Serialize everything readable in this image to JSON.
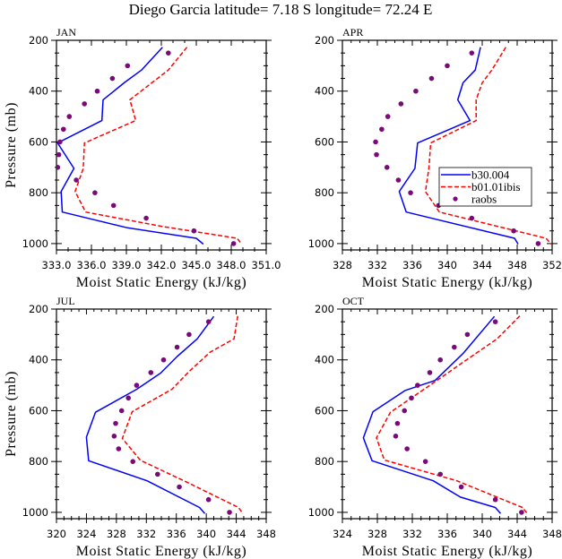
{
  "title": "Diego Garcia   latitude= 7.18 S longitude= 72.24 E",
  "chart_data": [
    {
      "type": "line",
      "panel": "JAN",
      "title": "JAN",
      "xlabel": "Moist Static Energy (kJ/kg)",
      "ylabel": "Pressure (mb)",
      "xlim": [
        333.0,
        351.0
      ],
      "ylim": [
        200,
        1025
      ],
      "y_inverted": true,
      "xticks": [
        333.0,
        336.0,
        339.0,
        342.0,
        345.0,
        348.0,
        351.0
      ],
      "xtick_labels": [
        "333.0",
        "336.0",
        "339.0",
        "342.0",
        "345.0",
        "348.0",
        "351.0"
      ],
      "xminor_step": 1,
      "yticks": [
        200,
        400,
        600,
        800,
        1000
      ],
      "ytick_labels": [
        "200",
        "400",
        "600",
        "800",
        "1000"
      ],
      "yminor_step": 50,
      "show_ylabel": true,
      "legend": null,
      "series": [
        {
          "name": "b30.004",
          "style": "solid",
          "color": "#0000ff",
          "x": [
            342.1,
            340.3,
            338.9,
            337.0,
            336.9,
            333.1,
            334.5,
            333.4,
            333.5,
            339.1,
            345.0,
            345.6
          ],
          "y": [
            227,
            317,
            364,
            434,
            516,
            604,
            704,
            795,
            876,
            938,
            979,
            1002
          ]
        },
        {
          "name": "b01.01ibis",
          "style": "dashed",
          "color": "#ff0000",
          "x": [
            344.2,
            342.6,
            339.3,
            339.8,
            335.4,
            335.3,
            334.6,
            335.5,
            342.0,
            348.5,
            348.9
          ],
          "y": [
            227,
            317,
            434,
            516,
            604,
            704,
            795,
            876,
            932,
            979,
            1002
          ]
        },
        {
          "name": "raobs",
          "style": "markers",
          "color": "#7a0a7a",
          "x": [
            342.6,
            339.1,
            337.8,
            336.5,
            335.4,
            334.1,
            333.6,
            333.3,
            333.2,
            333.1,
            334.7,
            336.3,
            337.9,
            340.7,
            344.8,
            348.2
          ],
          "y": [
            250,
            300,
            350,
            400,
            450,
            500,
            550,
            600,
            650,
            700,
            750,
            800,
            850,
            900,
            950,
            1000
          ]
        }
      ]
    },
    {
      "type": "line",
      "panel": "APR",
      "title": "APR",
      "xlabel": "Moist Static Energy (kJ/kg)",
      "ylabel": "Pressure (mb)",
      "xlim": [
        328,
        352
      ],
      "ylim": [
        200,
        1025
      ],
      "y_inverted": true,
      "xticks": [
        328,
        332,
        336,
        340,
        344,
        348,
        352
      ],
      "xtick_labels": [
        "328",
        "332",
        "336",
        "340",
        "344",
        "348",
        "352"
      ],
      "xminor_step": 1,
      "yticks": [
        200,
        400,
        600,
        800,
        1000
      ],
      "ytick_labels": [
        "200",
        "400",
        "600",
        "800",
        "1000"
      ],
      "yminor_step": 50,
      "show_ylabel": false,
      "legend": {
        "location": "center-right",
        "entries": [
          {
            "label": "b30.004",
            "style": "solid",
            "color": "#0000ff"
          },
          {
            "label": "b01.01ibis",
            "style": "dashed",
            "color": "#ff0000"
          },
          {
            "label": "raobs",
            "style": "markers",
            "color": "#7a0a7a"
          }
        ]
      },
      "series": [
        {
          "name": "b30.004",
          "style": "solid",
          "color": "#0000ff",
          "x": [
            343.8,
            343.2,
            341.8,
            341.2,
            342.6,
            336.6,
            336.3,
            334.5,
            335.3,
            347.7,
            348.1
          ],
          "y": [
            227,
            317,
            367,
            434,
            516,
            604,
            704,
            795,
            876,
            979,
            1002
          ]
        },
        {
          "name": "b01.01ibis",
          "style": "dashed",
          "color": "#ff0000",
          "x": [
            346.7,
            345.1,
            344.0,
            343.3,
            343.3,
            338.1,
            337.9,
            337.5,
            339.1,
            351.3,
            351.9
          ],
          "y": [
            227,
            317,
            367,
            434,
            516,
            604,
            704,
            795,
            876,
            979,
            1002
          ]
        },
        {
          "name": "raobs",
          "style": "markers",
          "color": "#7a0a7a",
          "x": [
            342.8,
            340.0,
            338.2,
            336.4,
            334.7,
            333.2,
            332.5,
            331.8,
            331.9,
            333.1,
            334.4,
            335.8,
            339.0,
            342.8,
            347.6,
            350.4
          ],
          "y": [
            250,
            300,
            350,
            400,
            450,
            500,
            550,
            600,
            650,
            700,
            750,
            800,
            850,
            900,
            950,
            1000
          ]
        }
      ]
    },
    {
      "type": "line",
      "panel": "JUL",
      "title": "JUL",
      "xlabel": "Moist Static Energy (kJ/kg)",
      "ylabel": "Pressure (mb)",
      "xlim": [
        320,
        348
      ],
      "ylim": [
        200,
        1025
      ],
      "y_inverted": true,
      "xticks": [
        320,
        324,
        328,
        332,
        336,
        340,
        344,
        348
      ],
      "xtick_labels": [
        "320",
        "324",
        "328",
        "332",
        "336",
        "340",
        "344",
        "348"
      ],
      "xminor_step": 1,
      "yticks": [
        200,
        400,
        600,
        800,
        1000
      ],
      "ytick_labels": [
        "200",
        "400",
        "600",
        "800",
        "1000"
      ],
      "yminor_step": 50,
      "show_ylabel": true,
      "legend": null,
      "series": [
        {
          "name": "b30.004",
          "style": "solid",
          "color": "#0000ff",
          "x": [
            341.0,
            338.8,
            336.1,
            333.9,
            330.7,
            325.2,
            324.0,
            324.3,
            332.1,
            339.1,
            339.8
          ],
          "y": [
            229,
            317,
            387,
            452,
            516,
            606,
            704,
            797,
            876,
            981,
            1005
          ]
        },
        {
          "name": "b01.01ibis",
          "style": "dashed",
          "color": "#ff0000",
          "x": [
            344.2,
            343.7,
            340.5,
            337.7,
            335.4,
            330.1,
            328.8,
            331.2,
            337.4,
            344.3,
            344.9
          ],
          "y": [
            227,
            317,
            370,
            446,
            516,
            604,
            709,
            795,
            881,
            981,
            1005
          ]
        },
        {
          "name": "raobs",
          "style": "markers",
          "color": "#7a0a7a",
          "x": [
            340.3,
            337.7,
            336.1,
            334.3,
            332.6,
            330.7,
            329.6,
            328.7,
            327.9,
            327.7,
            328.3,
            330.2,
            333.5,
            336.4,
            340.3,
            343.1
          ],
          "y": [
            250,
            300,
            350,
            400,
            450,
            500,
            550,
            600,
            650,
            700,
            750,
            800,
            850,
            900,
            950,
            1000
          ]
        }
      ]
    },
    {
      "type": "line",
      "panel": "OCT",
      "title": "OCT",
      "xlabel": "Moist Static Energy (kJ/kg)",
      "ylabel": "Pressure (mb)",
      "xlim": [
        324,
        348
      ],
      "ylim": [
        200,
        1025
      ],
      "y_inverted": true,
      "xticks": [
        324,
        328,
        332,
        336,
        340,
        344,
        348
      ],
      "xtick_labels": [
        "324",
        "328",
        "332",
        "336",
        "340",
        "344",
        "348"
      ],
      "xminor_step": 1,
      "yticks": [
        200,
        400,
        600,
        800,
        1000
      ],
      "ytick_labels": [
        "200",
        "400",
        "600",
        "800",
        "1000"
      ],
      "yminor_step": 50,
      "show_ylabel": false,
      "legend": null,
      "series": [
        {
          "name": "b30.004",
          "style": "solid",
          "color": "#0000ff",
          "x": [
            341.4,
            337.8,
            334.6,
            331.2,
            327.5,
            326.4,
            327.4,
            334.4,
            337.5,
            341.5,
            342.1
          ],
          "y": [
            229,
            375,
            481,
            520,
            604,
            707,
            797,
            876,
            940,
            981,
            1005
          ]
        },
        {
          "name": "b01.01ibis",
          "style": "dashed",
          "color": "#ff0000",
          "x": [
            344.3,
            341.7,
            338.5,
            334.1,
            329.5,
            327.9,
            328.8,
            337.1,
            344.6,
            345.1
          ],
          "y": [
            227,
            317,
            393,
            498,
            606,
            707,
            794,
            876,
            981,
            1002
          ]
        },
        {
          "name": "raobs",
          "style": "markers",
          "color": "#7a0a7a",
          "x": [
            341.5,
            338.3,
            336.8,
            335.2,
            334.0,
            332.6,
            331.9,
            331.1,
            330.3,
            330.1,
            331.4,
            333.5,
            335.2,
            337.6,
            341.5,
            344.5
          ],
          "y": [
            250,
            300,
            350,
            400,
            450,
            500,
            550,
            600,
            650,
            700,
            750,
            800,
            850,
            900,
            950,
            1000
          ]
        }
      ]
    }
  ]
}
